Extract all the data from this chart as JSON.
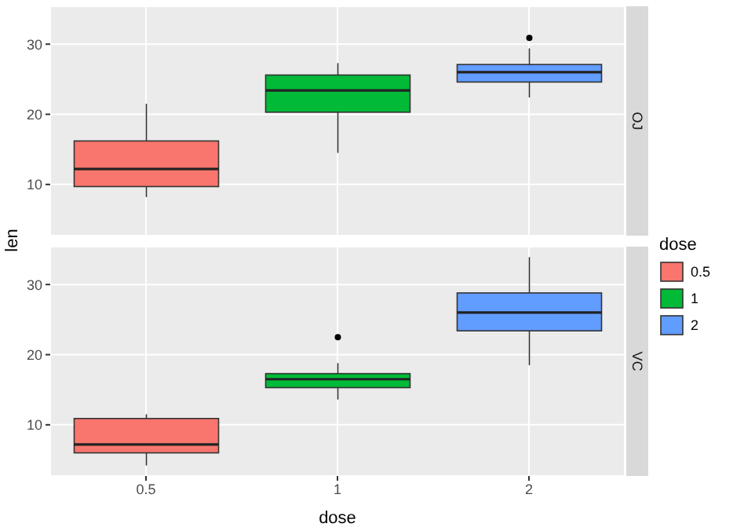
{
  "chart_data": [
    {
      "type": "box",
      "title": "OJ",
      "ylabel": "len",
      "legend_title": "dose",
      "legend": "right",
      "categories": [
        "0.5",
        "1",
        "2"
      ],
      "series": [
        {
          "name": "0.5",
          "color": "#f8766d",
          "boxes": [
            {
              "low": 8.2,
              "q1": 9.7,
              "median": 12.2,
              "q3": 16.2,
              "high": 21.5
            },
            null,
            null
          ]
        },
        {
          "name": "1",
          "color": "#00ba38",
          "boxes": [
            null,
            {
              "low": 14.5,
              "q1": 20.3,
              "median": 23.4,
              "q3": 25.6,
              "high": 27.3
            },
            null
          ]
        },
        {
          "name": "2",
          "color": "#619cff",
          "boxes": [
            null,
            null,
            {
              "low": 22.4,
              "q1": 24.6,
              "median": 26.0,
              "q3": 27.1,
              "high": 29.4,
              "outliers": [
                30.9
              ]
            }
          ]
        }
      ],
      "ylim": [
        2.7,
        35.4
      ],
      "yticks": [
        10,
        20,
        30
      ],
      "grid": true,
      "tick_labels": "y"
    },
    {
      "type": "box",
      "title": "VC",
      "xlabel": "dose",
      "categories": [
        "0.5",
        "1",
        "2"
      ],
      "series": [
        {
          "color": "#f8766d",
          "boxes": [
            {
              "low": 4.2,
              "q1": 6.0,
              "median": 7.2,
              "q3": 10.9,
              "high": 11.5
            },
            null,
            null
          ]
        },
        {
          "color": "#00ba38",
          "boxes": [
            null,
            {
              "low": 13.6,
              "q1": 15.3,
              "median": 16.5,
              "q3": 17.3,
              "high": 18.8,
              "outliers": [
                22.5
              ]
            },
            null
          ]
        },
        {
          "color": "#619cff",
          "boxes": [
            null,
            null,
            {
              "low": 18.5,
              "q1": 23.4,
              "median": 26.0,
              "q3": 28.8,
              "high": 33.9
            }
          ]
        }
      ],
      "ylim": [
        2.7,
        35.4
      ],
      "yticks": [
        10,
        20,
        30
      ],
      "grid": true
    }
  ]
}
